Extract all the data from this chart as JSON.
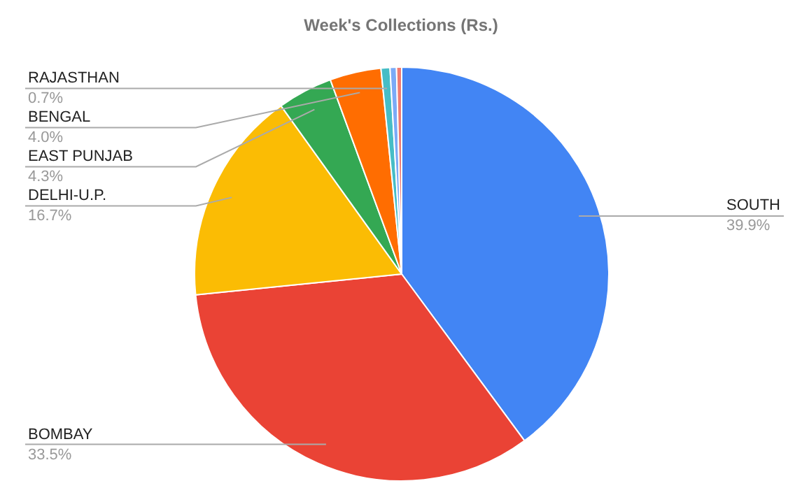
{
  "chart_data": {
    "type": "pie",
    "title": "Week's Collections (Rs.)",
    "categories": [
      "SOUTH",
      "BOMBAY",
      "DELHI-U.P.",
      "EAST PUNJAB",
      "BENGAL",
      "RAJASTHAN",
      null,
      null
    ],
    "values": [
      39.9,
      33.5,
      16.7,
      4.3,
      4.0,
      0.7,
      0.5,
      0.4
    ],
    "value_labels": [
      "39.9%",
      "33.5%",
      "16.7%",
      "4.3%",
      "4.0%",
      "0.7%",
      null,
      null
    ],
    "colors": [
      "#4285f4",
      "#ea4335",
      "#fbbc04",
      "#34a853",
      "#ff6d01",
      "#46bdc6",
      "#7baaf7",
      "#f07b72"
    ],
    "legend": false
  }
}
